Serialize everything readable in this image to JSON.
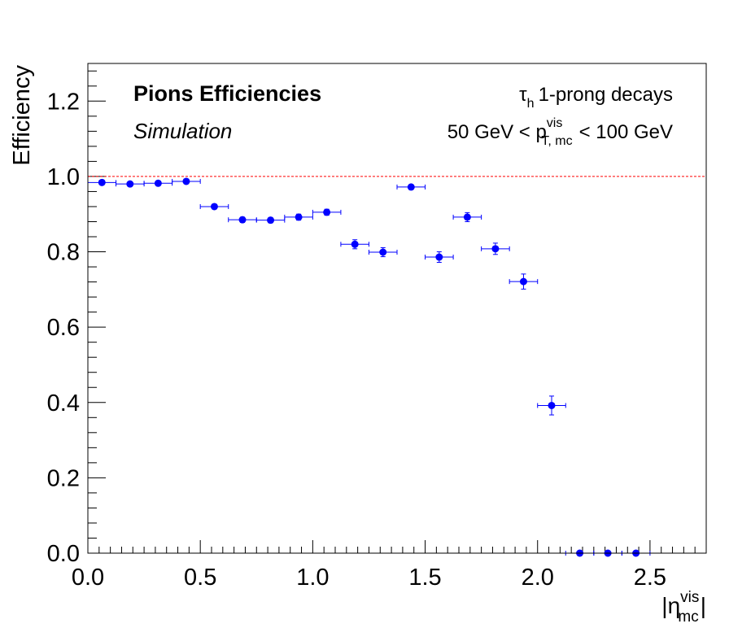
{
  "chart_data": {
    "type": "scatter",
    "title_bold": "Pions Efficiencies",
    "title_italic": "Simulation",
    "annotation_decay_sym": "τ",
    "annotation_decay_sub": "h",
    "annotation_decay_text": "1-prong decays",
    "annotation_range_left": "50 GeV < p",
    "annotation_range_sup": "vis",
    "annotation_range_sub": "T, mc",
    "annotation_range_right": "< 100 GeV",
    "ylabel": "Efficiency",
    "xlabel_pre": "|η",
    "xlabel_sup": "vis",
    "xlabel_sub": "mc",
    "xlabel_post": "|",
    "xlim": [
      0,
      2.75
    ],
    "ylim": [
      0,
      1.3
    ],
    "x_ticks": [
      "0.0",
      "0.5",
      "1.0",
      "1.5",
      "2.0",
      "2.5"
    ],
    "y_ticks": [
      "0.0",
      "0.2",
      "0.4",
      "0.6",
      "0.8",
      "1.0",
      "1.2"
    ],
    "reference_line": 1.0,
    "reference_color": "#ff0000",
    "marker_color": "#0000ff",
    "bin_half_width": 0.0625,
    "points": [
      {
        "x": 0.0625,
        "y": 0.984,
        "err": 0.004
      },
      {
        "x": 0.1875,
        "y": 0.98,
        "err": 0.004
      },
      {
        "x": 0.3125,
        "y": 0.982,
        "err": 0.004
      },
      {
        "x": 0.4375,
        "y": 0.987,
        "err": 0.004
      },
      {
        "x": 0.5625,
        "y": 0.92,
        "err": 0.006
      },
      {
        "x": 0.6875,
        "y": 0.885,
        "err": 0.007
      },
      {
        "x": 0.8125,
        "y": 0.884,
        "err": 0.007
      },
      {
        "x": 0.9375,
        "y": 0.892,
        "err": 0.008
      },
      {
        "x": 1.0625,
        "y": 0.905,
        "err": 0.008
      },
      {
        "x": 1.1875,
        "y": 0.82,
        "err": 0.012
      },
      {
        "x": 1.3125,
        "y": 0.799,
        "err": 0.012
      },
      {
        "x": 1.4375,
        "y": 0.972,
        "err": 0.006
      },
      {
        "x": 1.5625,
        "y": 0.786,
        "err": 0.014
      },
      {
        "x": 1.6875,
        "y": 0.892,
        "err": 0.012
      },
      {
        "x": 1.8125,
        "y": 0.808,
        "err": 0.015
      },
      {
        "x": 1.9375,
        "y": 0.721,
        "err": 0.02
      },
      {
        "x": 2.0625,
        "y": 0.392,
        "err": 0.025
      },
      {
        "x": 2.1875,
        "y": 0.0,
        "err": 0.003
      },
      {
        "x": 2.3125,
        "y": 0.0,
        "err": 0.003
      },
      {
        "x": 2.4375,
        "y": 0.0,
        "err": 0.003
      }
    ]
  }
}
